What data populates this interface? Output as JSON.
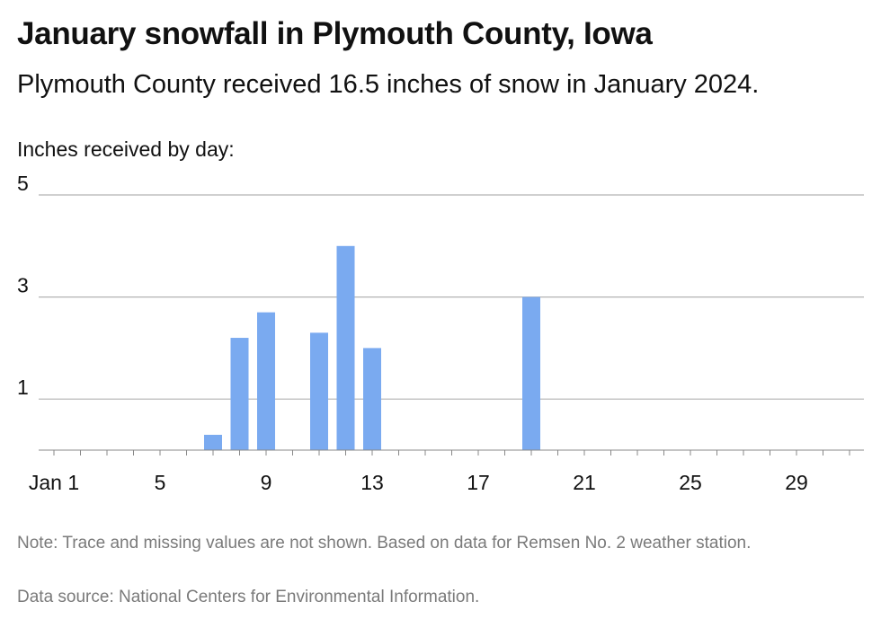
{
  "title": "January snowfall in Plymouth County, Iowa",
  "subtitle": "Plymouth County received 16.5 inches of snow in January 2024.",
  "chart_label": "Inches received by day:",
  "note": "Note: Trace and missing values are not shown. Based on data for Remsen No. 2 weather station.",
  "source": "Data source: National Centers for Environmental Information.",
  "colors": {
    "bar": "#7aaaf0",
    "grid": "#b3b3b3",
    "axis": "#888888",
    "text": "#111111",
    "muted": "#7a7a7a"
  },
  "chart_data": {
    "type": "bar",
    "title": "January snowfall in Plymouth County, Iowa",
    "ylabel": "Inches received by day:",
    "xlabel": "",
    "x": [
      7,
      8,
      9,
      11,
      12,
      13,
      19
    ],
    "values": [
      0.3,
      2.2,
      2.7,
      2.3,
      4.0,
      2.0,
      3.0
    ],
    "xlim": [
      1,
      31
    ],
    "ylim": [
      0,
      5
    ],
    "yticks": [
      1,
      3,
      5
    ],
    "xticks": [
      1,
      5,
      9,
      13,
      17,
      21,
      25,
      29
    ],
    "xtick_labels": [
      "Jan 1",
      "5",
      "9",
      "13",
      "17",
      "21",
      "25",
      "29"
    ],
    "grid": true
  }
}
